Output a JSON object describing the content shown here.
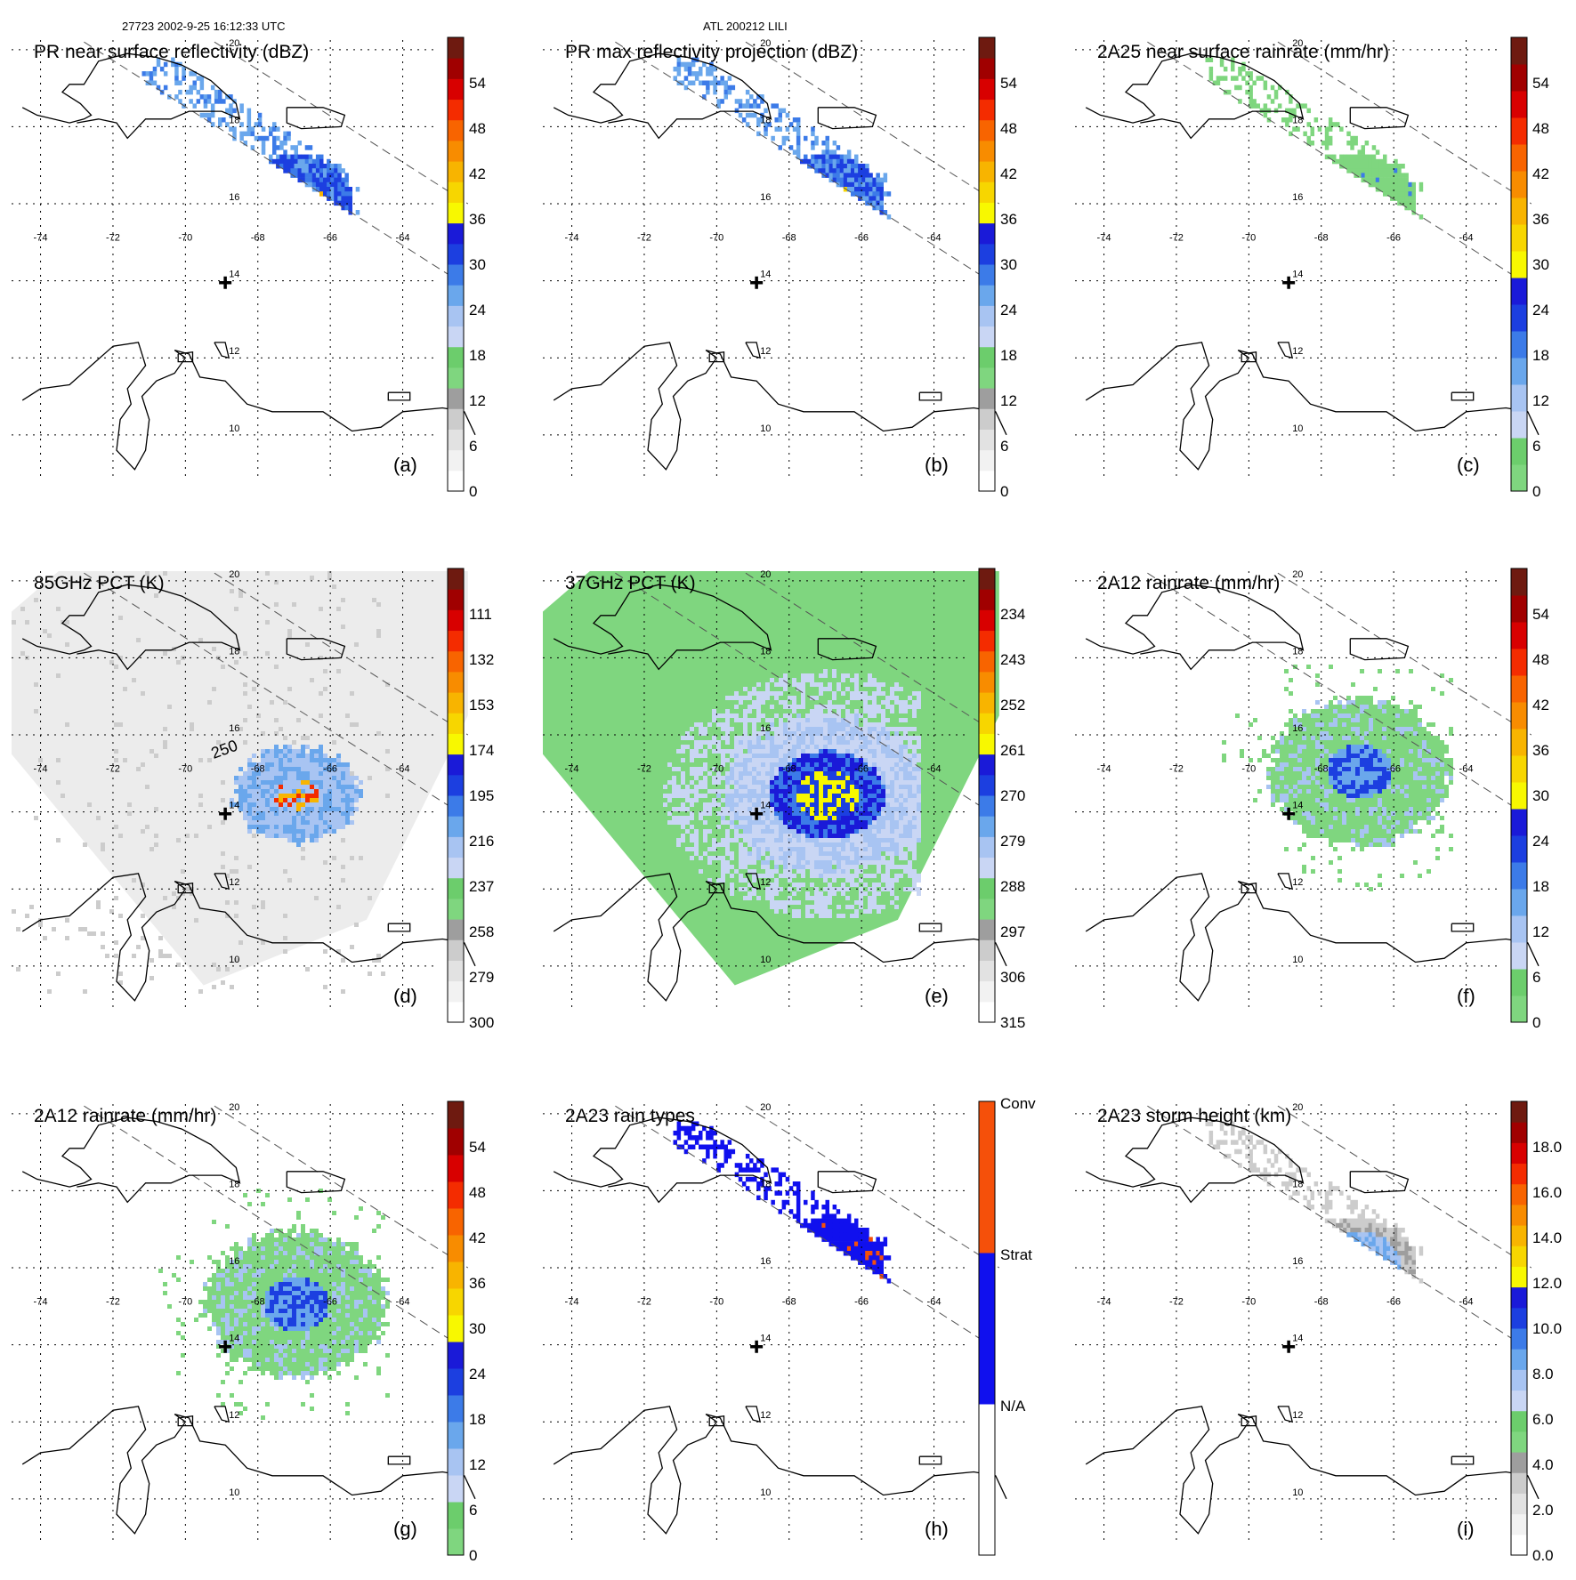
{
  "header": {
    "left": "27723 2002-9-25 16:12:33 UTC",
    "center": "ATL 200212 LILI"
  },
  "map": {
    "lon_ticks": [
      "-74",
      "-72",
      "-70",
      "-68",
      "-66",
      "-64"
    ],
    "lat_ticks": [
      "20",
      "18",
      "16",
      "14",
      "12",
      "10"
    ],
    "storm_center": {
      "lon": -68.9,
      "lat": 13.95
    }
  },
  "colors": {
    "coast": "#000000",
    "grid": "#000000",
    "swath": "#555555"
  },
  "panels": [
    {
      "label": "(a)",
      "title": "PR near surface reflectivity (dBZ)",
      "colorbar": {
        "ticks": [
          "0",
          "6",
          "12",
          "18",
          "24",
          "30",
          "36",
          "42",
          "48",
          "54"
        ],
        "colors": [
          "#ffffff",
          "#f2f2f2",
          "#e2e2e2",
          "#cccccc",
          "#9e9e9e",
          "#7fd67f",
          "#6ccd6c",
          "#c9d6f4",
          "#a8c4f2",
          "#6aa7ec",
          "#3c7be8",
          "#1c3fe0",
          "#1a1ad8",
          "#f8f800",
          "#f7d600",
          "#f8b400",
          "#f88c00",
          "#f86400",
          "#f42c00",
          "#d80000",
          "#a00000",
          "#6e1a10"
        ]
      },
      "field": "pr"
    },
    {
      "label": "(b)",
      "title": "PR max reflectivity projection (dBZ)",
      "colorbar": {
        "ticks": [
          "0",
          "6",
          "12",
          "18",
          "24",
          "30",
          "36",
          "42",
          "48",
          "54"
        ],
        "colors": [
          "#ffffff",
          "#f2f2f2",
          "#e2e2e2",
          "#cccccc",
          "#9e9e9e",
          "#7fd67f",
          "#6ccd6c",
          "#c9d6f4",
          "#a8c4f2",
          "#6aa7ec",
          "#3c7be8",
          "#1c3fe0",
          "#1a1ad8",
          "#f8f800",
          "#f7d600",
          "#f8b400",
          "#f88c00",
          "#f86400",
          "#f42c00",
          "#d80000",
          "#a00000",
          "#6e1a10"
        ]
      },
      "field": "prmax"
    },
    {
      "label": "(c)",
      "title": "2A25 near surface rainrate (mm/hr)",
      "colorbar": {
        "ticks": [
          "0",
          "6",
          "12",
          "18",
          "24",
          "30",
          "36",
          "42",
          "48",
          "54"
        ],
        "colors": [
          "#7fd67f",
          "#6ccd6c",
          "#c9d6f4",
          "#a8c4f2",
          "#6aa7ec",
          "#3c7be8",
          "#1c3fe0",
          "#1a1ad8",
          "#f8f800",
          "#f7d600",
          "#f8b400",
          "#f88c00",
          "#f86400",
          "#f42c00",
          "#d80000",
          "#a00000",
          "#6e1a10"
        ]
      },
      "field": "rain25"
    },
    {
      "label": "(d)",
      "title": "85GHz PCT (K)",
      "colorbar": {
        "ticks": [
          "300",
          "279",
          "258",
          "237",
          "216",
          "195",
          "174",
          "153",
          "132",
          "111"
        ],
        "colors": [
          "#ffffff",
          "#f2f2f2",
          "#e2e2e2",
          "#cccccc",
          "#9e9e9e",
          "#7fd67f",
          "#6ccd6c",
          "#c9d6f4",
          "#a8c4f2",
          "#6aa7ec",
          "#3c7be8",
          "#1c3fe0",
          "#1a1ad8",
          "#f8f800",
          "#f7d600",
          "#f8b400",
          "#f88c00",
          "#f86400",
          "#f42c00",
          "#d80000",
          "#a00000",
          "#6e1a10"
        ]
      },
      "field": "pct85",
      "contour_label": "250"
    },
    {
      "label": "(e)",
      "title": "37GHz PCT (K)",
      "colorbar": {
        "ticks": [
          "315",
          "306",
          "297",
          "288",
          "279",
          "270",
          "261",
          "252",
          "243",
          "234"
        ],
        "colors": [
          "#ffffff",
          "#f2f2f2",
          "#e2e2e2",
          "#cccccc",
          "#9e9e9e",
          "#7fd67f",
          "#6ccd6c",
          "#c9d6f4",
          "#a8c4f2",
          "#6aa7ec",
          "#3c7be8",
          "#1c3fe0",
          "#1a1ad8",
          "#f8f800",
          "#f7d600",
          "#f8b400",
          "#f88c00",
          "#f86400",
          "#f42c00",
          "#d80000",
          "#a00000",
          "#6e1a10"
        ]
      },
      "field": "pct37"
    },
    {
      "label": "(f)",
      "title": "2A12 rainrate (mm/hr)",
      "colorbar": {
        "ticks": [
          "0",
          "6",
          "12",
          "18",
          "24",
          "30",
          "36",
          "42",
          "48",
          "54"
        ],
        "colors": [
          "#7fd67f",
          "#6ccd6c",
          "#c9d6f4",
          "#a8c4f2",
          "#6aa7ec",
          "#3c7be8",
          "#1c3fe0",
          "#1a1ad8",
          "#f8f800",
          "#f7d600",
          "#f8b400",
          "#f88c00",
          "#f86400",
          "#f42c00",
          "#d80000",
          "#a00000",
          "#6e1a10"
        ]
      },
      "field": "rain12"
    },
    {
      "label": "(g)",
      "title": "2A12 rainrate (mm/hr)",
      "colorbar": {
        "ticks": [
          "0",
          "6",
          "12",
          "18",
          "24",
          "30",
          "36",
          "42",
          "48",
          "54"
        ],
        "colors": [
          "#7fd67f",
          "#6ccd6c",
          "#c9d6f4",
          "#a8c4f2",
          "#6aa7ec",
          "#3c7be8",
          "#1c3fe0",
          "#1a1ad8",
          "#f8f800",
          "#f7d600",
          "#f8b400",
          "#f88c00",
          "#f86400",
          "#f42c00",
          "#d80000",
          "#a00000",
          "#6e1a10"
        ]
      },
      "field": "rain12b"
    },
    {
      "label": "(h)",
      "title": "2A23 rain types",
      "colorbar": {
        "ticks": [
          "N/A",
          "Strat",
          "Conv"
        ],
        "categorical": true,
        "colors": [
          "#ffffff",
          "#1010ee",
          "#f5500a"
        ]
      },
      "field": "types"
    },
    {
      "label": "(i)",
      "title": "2A23 storm height (km)",
      "colorbar": {
        "ticks": [
          "0.0",
          "2.0",
          "4.0",
          "6.0",
          "8.0",
          "10.0",
          "12.0",
          "14.0",
          "16.0",
          "18.0"
        ],
        "colors": [
          "#ffffff",
          "#f2f2f2",
          "#e2e2e2",
          "#cccccc",
          "#9e9e9e",
          "#7fd67f",
          "#6ccd6c",
          "#c9d6f4",
          "#a8c4f2",
          "#6aa7ec",
          "#3c7be8",
          "#1c3fe0",
          "#1a1ad8",
          "#f8f800",
          "#f7d600",
          "#f8b400",
          "#f88c00",
          "#f86400",
          "#f42c00",
          "#d80000",
          "#a00000",
          "#6e1a10"
        ]
      },
      "field": "height"
    }
  ]
}
